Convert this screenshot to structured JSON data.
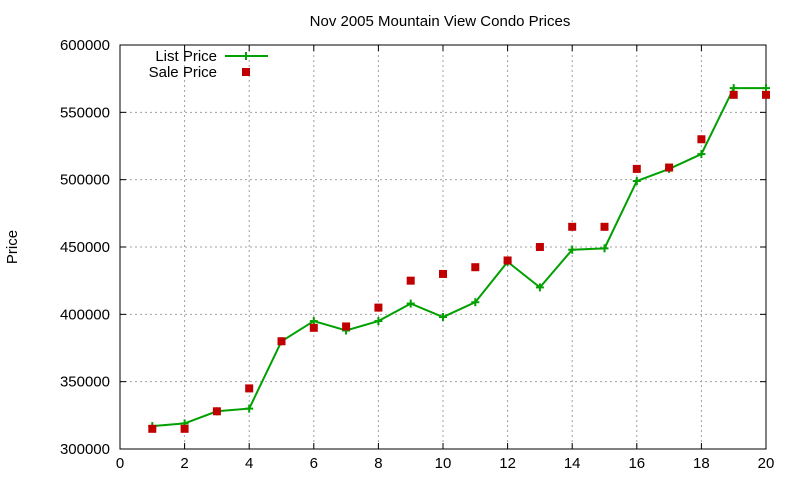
{
  "chart_data": {
    "type": "line",
    "title": "Nov 2005 Mountain View Condo Prices",
    "xlabel": "",
    "ylabel": "Price",
    "xlim": [
      0,
      20
    ],
    "ylim": [
      300000,
      600000
    ],
    "xticks": [
      0,
      2,
      4,
      6,
      8,
      10,
      12,
      14,
      16,
      18,
      20
    ],
    "yticks": [
      300000,
      350000,
      400000,
      450000,
      500000,
      550000,
      600000
    ],
    "grid": true,
    "legend_position": "top-left",
    "series": [
      {
        "name": "List Price",
        "style": "line+plus-markers",
        "color": "#00a000",
        "x": [
          1,
          2,
          3,
          4,
          5,
          6,
          7,
          8,
          9,
          10,
          11,
          12,
          13,
          14,
          15,
          16,
          17,
          18,
          19,
          20
        ],
        "y": [
          317000,
          319000,
          328000,
          330000,
          380000,
          395000,
          388000,
          395000,
          408000,
          398000,
          409000,
          439000,
          420000,
          448000,
          449000,
          499000,
          508000,
          519000,
          568000,
          568000
        ]
      },
      {
        "name": "Sale Price",
        "style": "square-markers",
        "color": "#c00000",
        "x": [
          1,
          2,
          3,
          4,
          5,
          6,
          7,
          8,
          9,
          10,
          11,
          12,
          13,
          14,
          15,
          16,
          17,
          18,
          19,
          20
        ],
        "y": [
          315000,
          315000,
          328000,
          345000,
          380000,
          390000,
          391000,
          405000,
          425000,
          430000,
          435000,
          440000,
          450000,
          465000,
          465000,
          508000,
          509000,
          530000,
          563000,
          563000
        ]
      }
    ]
  }
}
